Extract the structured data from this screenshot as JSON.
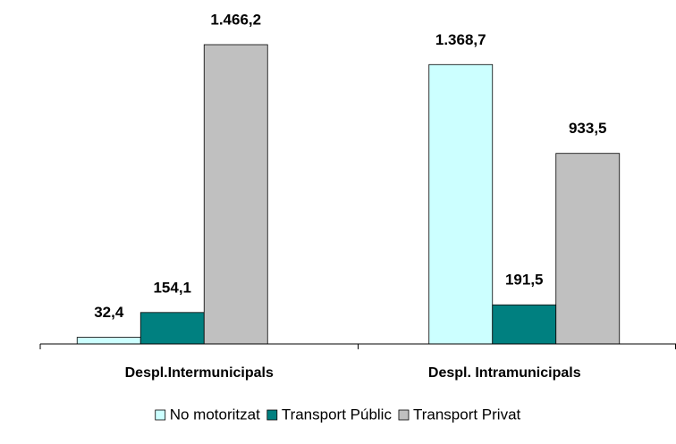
{
  "chart_data": {
    "type": "bar",
    "categories": [
      "Despl.Intermunicipals",
      "Despl. Intramunicipals"
    ],
    "series": [
      {
        "name": "No motoritzat",
        "color": "#ccffff",
        "values": [
          32.4,
          1368.7
        ],
        "value_labels": [
          "32,4",
          "1.368,7"
        ]
      },
      {
        "name": "Transport Públic",
        "color": "#008080",
        "values": [
          154.1,
          191.5
        ],
        "value_labels": [
          "154,1",
          "191,5"
        ]
      },
      {
        "name": "Transport Privat",
        "color": "#c0c0c0",
        "values": [
          1466.2,
          933.5
        ],
        "value_labels": [
          "1.466,2",
          "933,5"
        ]
      }
    ],
    "legend": "bottom"
  }
}
